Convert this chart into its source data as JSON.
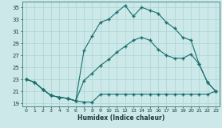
{
  "xlabel": "Humidex (Indice chaleur)",
  "bg_color": "#cce8e8",
  "grid_color": "#aad4d4",
  "line_color": "#1a6e6e",
  "xlim_min": -0.5,
  "xlim_max": 23.5,
  "ylim_min": 18.5,
  "ylim_max": 36.0,
  "yticks": [
    19,
    21,
    23,
    25,
    27,
    29,
    31,
    33,
    35
  ],
  "xticks": [
    0,
    1,
    2,
    3,
    4,
    5,
    6,
    7,
    8,
    9,
    10,
    11,
    12,
    13,
    14,
    15,
    16,
    17,
    18,
    19,
    20,
    21,
    22,
    23
  ],
  "line_bot_x": [
    0,
    1,
    2,
    3,
    4,
    5,
    6,
    7,
    8,
    9,
    10,
    11,
    12,
    13,
    14,
    15,
    16,
    17,
    18,
    19,
    20,
    21,
    22,
    23
  ],
  "line_bot_y": [
    23.0,
    22.5,
    21.3,
    20.3,
    20.0,
    19.8,
    19.4,
    19.2,
    19.2,
    20.5,
    20.5,
    20.5,
    20.5,
    20.5,
    20.5,
    20.5,
    20.5,
    20.5,
    20.5,
    20.5,
    20.5,
    20.5,
    20.5,
    21.0
  ],
  "line_mid_x": [
    0,
    1,
    2,
    3,
    4,
    5,
    6,
    7,
    8,
    9,
    10,
    11,
    12,
    13,
    14,
    15,
    16,
    17,
    18,
    19,
    20,
    21,
    22,
    23
  ],
  "line_mid_y": [
    23.0,
    22.5,
    21.3,
    20.3,
    20.0,
    19.8,
    19.4,
    22.8,
    24.0,
    25.3,
    26.3,
    27.5,
    28.5,
    29.5,
    30.0,
    29.5,
    28.0,
    27.0,
    26.5,
    26.5,
    27.2,
    25.5,
    22.5,
    21.0
  ],
  "line_top_x": [
    0,
    1,
    2,
    3,
    4,
    5,
    6,
    7,
    8,
    9,
    10,
    11,
    12,
    13,
    14,
    15,
    16,
    17,
    18,
    19,
    20,
    21,
    22,
    23
  ],
  "line_top_y": [
    23.0,
    22.5,
    21.3,
    20.3,
    20.0,
    19.8,
    19.4,
    27.8,
    30.2,
    32.5,
    33.0,
    34.2,
    35.3,
    33.5,
    35.0,
    34.5,
    34.0,
    32.5,
    31.5,
    30.0,
    29.5,
    25.5,
    22.5,
    21.0
  ]
}
